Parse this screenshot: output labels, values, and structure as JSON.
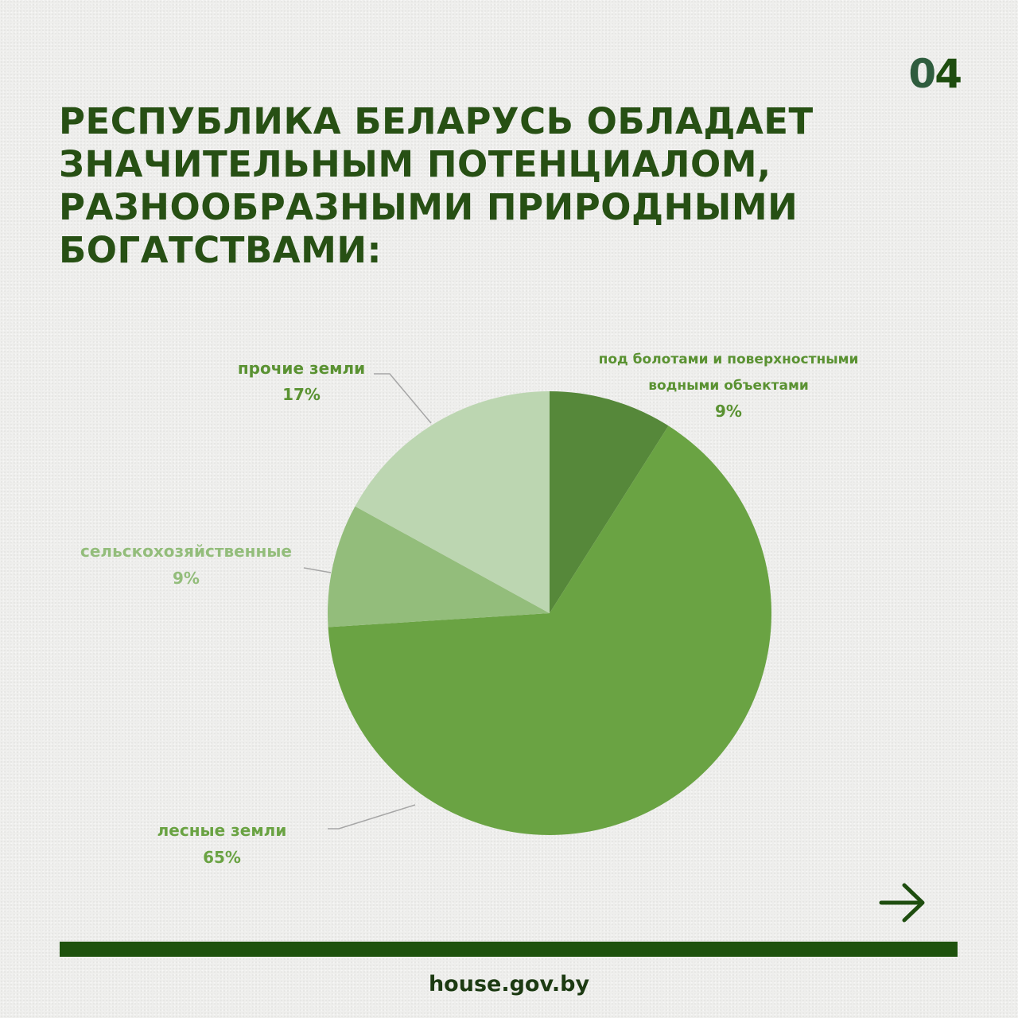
{
  "page_number": {
    "d0": "0",
    "d1": "4"
  },
  "headline": {
    "line1": "РЕСПУБЛИКА БЕЛАРУСЬ ОБЛАДАЕТ",
    "line2": "ЗНАЧИТЕЛЬНЫМ ПОТЕНЦИАЛОМ,",
    "line3": "РАЗНООБРАЗНЫМИ ПРИРОДНЫМИ",
    "line4": "БОГАТСТВАМИ:"
  },
  "chart_data": {
    "type": "pie",
    "start_angle": "12 o'clock, clockwise",
    "slices": [
      {
        "label_lines": [
          "под болотами и поверхностными",
          "водными объектами"
        ],
        "value": 9,
        "value_label": "9%",
        "color": "#56883a",
        "label_color": "#5a9232"
      },
      {
        "label_lines": [
          "лесные земли"
        ],
        "value": 65,
        "value_label": "65%",
        "color": "#6aa343",
        "label_color": "#6aa343"
      },
      {
        "label_lines": [
          "сельскохозяйственные"
        ],
        "value": 9,
        "value_label": "9%",
        "color": "#93bd7b",
        "label_color": "#93bd7b"
      },
      {
        "label_lines": [
          "прочие земли"
        ],
        "value": 17,
        "value_label": "17%",
        "color": "#bcd6b1",
        "label_color": "#5a9232"
      }
    ]
  },
  "footer": {
    "site": "house.gov.by"
  },
  "colors": {
    "background": "#eeeeec",
    "headline": "#275014",
    "bar": "#1e520d",
    "site": "#1c3a12",
    "leader_line": "#a6a6a6"
  },
  "icons": {
    "next": "arrow-right-icon"
  }
}
